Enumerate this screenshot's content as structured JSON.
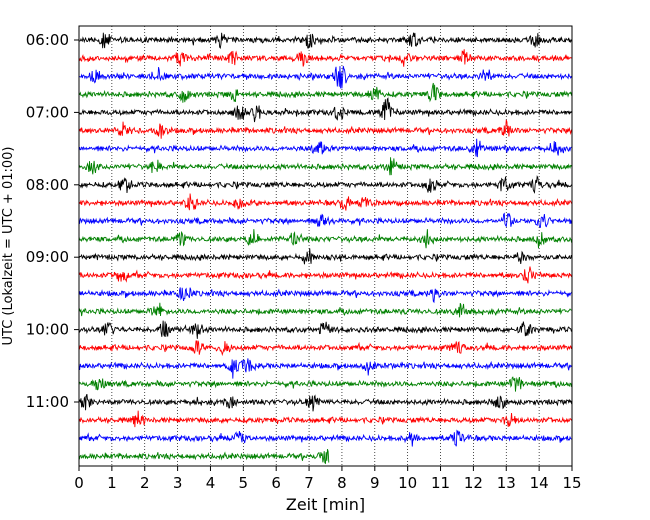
{
  "chart_data": {
    "type": "line",
    "subtype": "helicorder",
    "xlabel": "Zeit  [min]",
    "ylabel": "UTC (Lokalzeit = UTC + 01:00)",
    "xlim": [
      0,
      15
    ],
    "x_ticks": [
      "0",
      "1",
      "2",
      "3",
      "4",
      "5",
      "6",
      "7",
      "8",
      "9",
      "10",
      "11",
      "12",
      "13",
      "14",
      "15"
    ],
    "y_tick_labels": [
      "06:00",
      "07:00",
      "08:00",
      "09:00",
      "10:00",
      "11:00"
    ],
    "vertical_grid": "dotted, every 1 min",
    "trace_interval_min": 15,
    "trace_colors": [
      "#000000",
      "#ff0000",
      "#0000ff",
      "#008000"
    ],
    "traces": [
      {
        "start": "06:00",
        "end_min": 15,
        "events_min": [
          13.9,
          0.8,
          4.3,
          7.0,
          10.2
        ]
      },
      {
        "start": "06:15",
        "end_min": 15,
        "events_min": [
          3.1,
          4.7,
          6.8,
          9.9,
          11.7
        ]
      },
      {
        "start": "06:30",
        "end_min": 15,
        "events_min": [
          0.5,
          2.4,
          7.9,
          8.0,
          12.4
        ]
      },
      {
        "start": "06:45",
        "end_min": 15,
        "events_min": [
          3.2,
          4.7,
          9.0,
          10.8
        ]
      },
      {
        "start": "07:00",
        "end_min": 15,
        "events_min": [
          4.9,
          5.4,
          7.9,
          9.3,
          9.4
        ]
      },
      {
        "start": "07:15",
        "end_min": 15,
        "events_min": [
          1.4,
          2.5,
          13.0
        ]
      },
      {
        "start": "07:30",
        "end_min": 15,
        "events_min": [
          7.3,
          12.1,
          14.5
        ]
      },
      {
        "start": "07:45",
        "end_min": 15,
        "events_min": [
          0.4,
          2.3,
          9.5
        ]
      },
      {
        "start": "08:00",
        "end_min": 15,
        "events_min": [
          1.4,
          10.7,
          12.9,
          13.9
        ]
      },
      {
        "start": "08:15",
        "end_min": 15,
        "events_min": [
          3.4,
          4.9,
          8.1,
          8.7
        ]
      },
      {
        "start": "08:30",
        "end_min": 15,
        "events_min": [
          7.4,
          13.0,
          14.1
        ]
      },
      {
        "start": "08:45",
        "end_min": 15,
        "events_min": [
          3.1,
          5.3,
          6.6,
          10.6,
          14.0
        ]
      },
      {
        "start": "09:00",
        "end_min": 15,
        "events_min": [
          7.0,
          13.4
        ]
      },
      {
        "start": "09:15",
        "end_min": 15,
        "events_min": [
          1.3,
          13.7
        ]
      },
      {
        "start": "09:30",
        "end_min": 15,
        "events_min": [
          3.2,
          10.8
        ]
      },
      {
        "start": "09:45",
        "end_min": 15,
        "events_min": [
          2.4,
          11.6
        ]
      },
      {
        "start": "10:00",
        "end_min": 15,
        "events_min": [
          0.9,
          2.6,
          3.6,
          7.5,
          13.6
        ]
      },
      {
        "start": "10:15",
        "end_min": 15,
        "events_min": [
          3.6,
          4.4,
          11.5
        ]
      },
      {
        "start": "10:30",
        "end_min": 15,
        "events_min": [
          4.7,
          5.1,
          8.8
        ]
      },
      {
        "start": "10:45",
        "end_min": 15,
        "events_min": [
          0.6,
          13.3
        ]
      },
      {
        "start": "11:00",
        "end_min": 15,
        "events_min": [
          0.2,
          4.6,
          7.1,
          12.8
        ]
      },
      {
        "start": "11:15",
        "end_min": 15,
        "events_min": [
          1.8,
          13.1
        ]
      },
      {
        "start": "11:30",
        "end_min": 15,
        "events_min": [
          4.9,
          10.1,
          11.5
        ]
      },
      {
        "start": "11:45",
        "end_min": 7.6,
        "events_min": [
          7.5
        ]
      }
    ]
  }
}
